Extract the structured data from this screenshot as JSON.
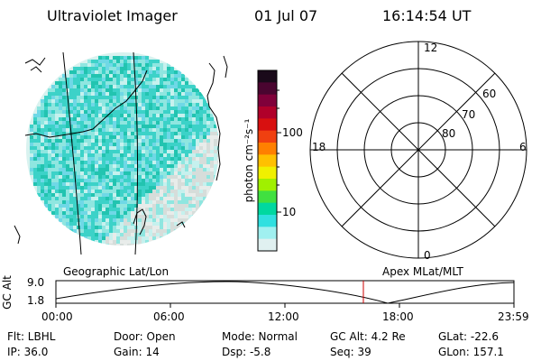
{
  "header": {
    "title": "Ultraviolet Imager",
    "date": "01 Jul 07",
    "time": "16:14:54 UT"
  },
  "colorbar": {
    "unit_label": "photon cm⁻²s⁻¹",
    "ticks": [
      "100",
      "10"
    ],
    "colors": [
      "#1a0a1a",
      "#4a0530",
      "#80003a",
      "#b0002a",
      "#d81010",
      "#f04010",
      "#ff8000",
      "#ffc000",
      "#f0f000",
      "#a0f000",
      "#40e040",
      "#00d8a0",
      "#30e0e0",
      "#a0f0f0",
      "#e0f0f0"
    ]
  },
  "image_panel": {
    "pixel_colors": [
      "#3cd2c8",
      "#8fe6e0",
      "#c6f1ee",
      "#d6ddda",
      "#e8ecea",
      "#22c4b0",
      "#6fd8e6"
    ]
  },
  "polar_plot": {
    "mlt_labels": [
      "12",
      "18",
      "6",
      "0"
    ],
    "lat_labels": [
      "60",
      "70",
      "80"
    ]
  },
  "altitude_plot": {
    "left_label": "Geographic Lat/Lon",
    "right_label": "Apex MLat/MLT",
    "axis_label": "GC Alt",
    "y_ticks": [
      "9.0",
      "1.8"
    ],
    "x_ticks": [
      "00:00",
      "06:00",
      "12:00",
      "18:00",
      "23:59"
    ],
    "marker_color": "#cc0000"
  },
  "info": {
    "filter": "Flt: LBHL",
    "ip": "IP: 36.0",
    "door": "Door: Open",
    "gain": "Gain: 14",
    "mode": "Mode: Normal",
    "dsp": "Dsp:   -5.8",
    "gc_alt": "GC Alt: 4.2 Re",
    "seq": "Seq: 39",
    "glat": "GLat: -22.6",
    "glon": "GLon: 157.1"
  }
}
